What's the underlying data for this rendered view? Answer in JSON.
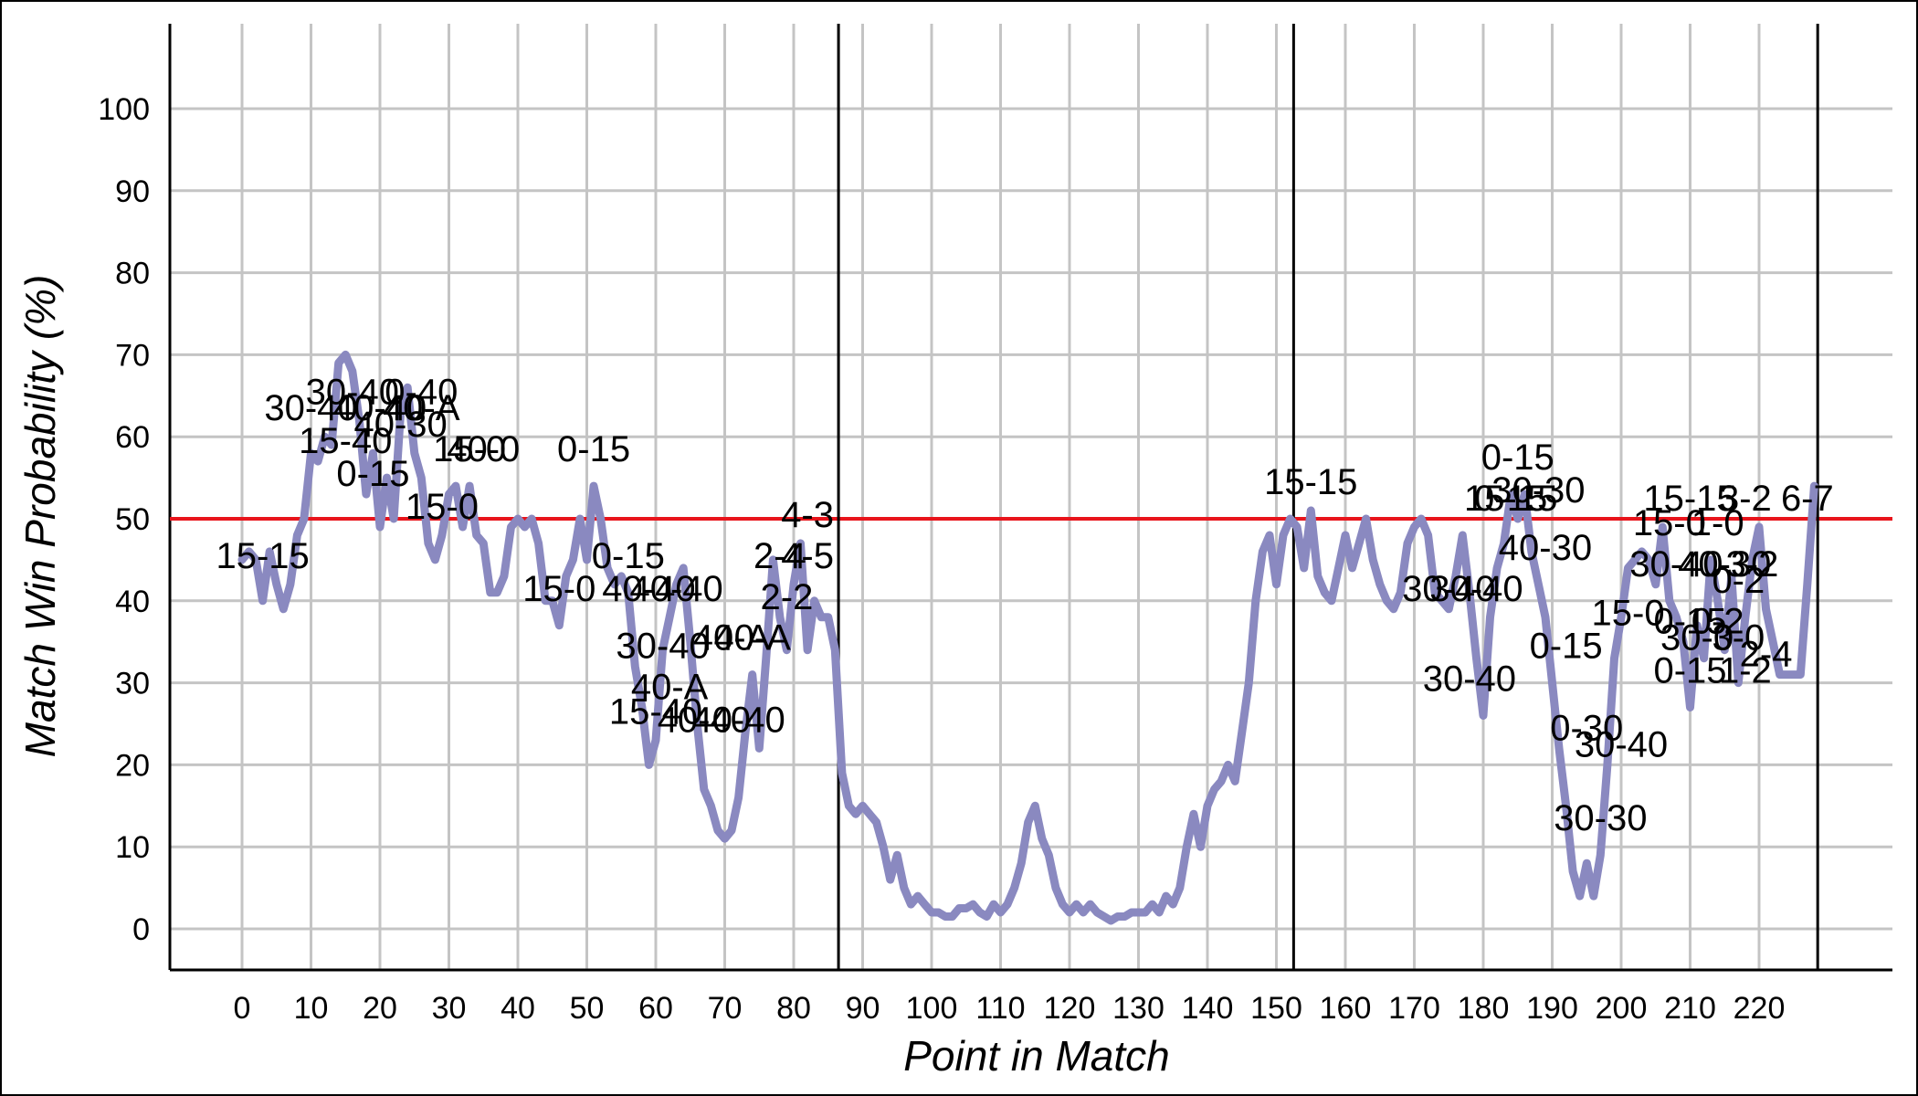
{
  "chart_data": {
    "type": "line",
    "title": "",
    "xlabel": "Point in Match",
    "ylabel": "Match Win Probability (%)",
    "xlim": [
      -10,
      240
    ],
    "ylim": [
      -5,
      110
    ],
    "x_ticks": [
      0,
      10,
      20,
      30,
      40,
      50,
      60,
      70,
      80,
      90,
      100,
      110,
      120,
      130,
      140,
      150,
      160,
      170,
      180,
      190,
      200,
      210,
      220
    ],
    "y_ticks": [
      0,
      10,
      20,
      30,
      40,
      50,
      60,
      70,
      80,
      90,
      100
    ],
    "grid": true,
    "legend": "none",
    "line_color": "#8a89c0",
    "reference_line": {
      "y": 50,
      "color": "#e8141b"
    },
    "set_boundaries": [
      86.5,
      152.5,
      228.5
    ],
    "series": [
      {
        "values": [
          [
            0,
            45
          ],
          [
            1,
            46
          ],
          [
            2,
            45
          ],
          [
            3,
            40
          ],
          [
            4,
            46
          ],
          [
            5,
            42
          ],
          [
            6,
            39
          ],
          [
            7,
            42
          ],
          [
            8,
            48
          ],
          [
            9,
            50
          ],
          [
            10,
            58
          ],
          [
            11,
            57
          ],
          [
            12,
            60
          ],
          [
            13,
            59
          ],
          [
            14,
            69
          ],
          [
            15,
            70
          ],
          [
            16,
            68
          ],
          [
            17,
            62
          ],
          [
            18,
            53
          ],
          [
            19,
            58
          ],
          [
            20,
            49
          ],
          [
            21,
            55
          ],
          [
            22,
            50
          ],
          [
            23,
            63
          ],
          [
            24,
            66
          ],
          [
            25,
            58
          ],
          [
            26,
            55
          ],
          [
            27,
            47
          ],
          [
            28,
            45
          ],
          [
            29,
            48
          ],
          [
            30,
            53
          ],
          [
            31,
            54
          ],
          [
            32,
            49
          ],
          [
            33,
            54
          ],
          [
            34,
            48
          ],
          [
            35,
            47
          ],
          [
            36,
            41
          ],
          [
            37,
            41
          ],
          [
            38,
            43
          ],
          [
            39,
            49
          ],
          [
            40,
            50
          ],
          [
            41,
            49
          ],
          [
            42,
            50
          ],
          [
            43,
            47
          ],
          [
            44,
            40
          ],
          [
            45,
            40
          ],
          [
            46,
            37
          ],
          [
            47,
            43
          ],
          [
            48,
            45
          ],
          [
            49,
            50
          ],
          [
            50,
            45
          ],
          [
            51,
            54
          ],
          [
            52,
            50
          ],
          [
            53,
            44
          ],
          [
            54,
            42
          ],
          [
            55,
            43
          ],
          [
            56,
            41
          ],
          [
            57,
            32
          ],
          [
            58,
            27
          ],
          [
            59,
            20
          ],
          [
            60,
            23
          ],
          [
            61,
            34
          ],
          [
            62,
            38
          ],
          [
            63,
            42
          ],
          [
            64,
            44
          ],
          [
            65,
            35
          ],
          [
            66,
            25
          ],
          [
            67,
            17
          ],
          [
            68,
            15
          ],
          [
            69,
            12
          ],
          [
            70,
            11
          ],
          [
            71,
            12
          ],
          [
            72,
            16
          ],
          [
            73,
            24
          ],
          [
            74,
            31
          ],
          [
            75,
            22
          ],
          [
            76,
            33
          ],
          [
            77,
            45
          ],
          [
            78,
            38
          ],
          [
            79,
            34
          ],
          [
            80,
            42
          ],
          [
            81,
            47
          ],
          [
            82,
            34
          ],
          [
            83,
            40
          ],
          [
            84,
            38
          ],
          [
            85,
            38
          ],
          [
            86,
            34
          ],
          [
            87,
            19
          ],
          [
            88,
            15
          ],
          [
            89,
            14
          ],
          [
            90,
            15
          ],
          [
            91,
            14
          ],
          [
            92,
            13
          ],
          [
            93,
            10
          ],
          [
            94,
            6
          ],
          [
            95,
            9
          ],
          [
            96,
            5
          ],
          [
            97,
            3
          ],
          [
            98,
            4
          ],
          [
            99,
            3
          ],
          [
            100,
            2
          ],
          [
            101,
            2
          ],
          [
            102,
            1.5
          ],
          [
            103,
            1.5
          ],
          [
            104,
            2.5
          ],
          [
            105,
            2.5
          ],
          [
            106,
            3
          ],
          [
            107,
            2
          ],
          [
            108,
            1.5
          ],
          [
            109,
            3
          ],
          [
            110,
            2
          ],
          [
            111,
            3
          ],
          [
            112,
            5
          ],
          [
            113,
            8
          ],
          [
            114,
            13
          ],
          [
            115,
            15
          ],
          [
            116,
            11
          ],
          [
            117,
            9
          ],
          [
            118,
            5
          ],
          [
            119,
            3
          ],
          [
            120,
            2
          ],
          [
            121,
            3
          ],
          [
            122,
            2
          ],
          [
            123,
            3
          ],
          [
            124,
            2
          ],
          [
            125,
            1.5
          ],
          [
            126,
            1
          ],
          [
            127,
            1.5
          ],
          [
            128,
            1.5
          ],
          [
            129,
            2
          ],
          [
            130,
            2
          ],
          [
            131,
            2
          ],
          [
            132,
            3
          ],
          [
            133,
            2
          ],
          [
            134,
            4
          ],
          [
            135,
            3
          ],
          [
            136,
            5
          ],
          [
            137,
            10
          ],
          [
            138,
            14
          ],
          [
            139,
            10
          ],
          [
            140,
            15
          ],
          [
            141,
            17
          ],
          [
            142,
            18
          ],
          [
            143,
            20
          ],
          [
            144,
            18
          ],
          [
            145,
            24
          ],
          [
            146,
            30
          ],
          [
            147,
            40
          ],
          [
            148,
            46
          ],
          [
            149,
            48
          ],
          [
            150,
            42
          ],
          [
            151,
            48
          ],
          [
            152,
            50
          ],
          [
            153,
            49
          ],
          [
            154,
            44
          ],
          [
            155,
            51
          ],
          [
            156,
            43
          ],
          [
            157,
            41
          ],
          [
            158,
            40
          ],
          [
            159,
            44
          ],
          [
            160,
            48
          ],
          [
            161,
            44
          ],
          [
            162,
            47
          ],
          [
            163,
            50
          ],
          [
            164,
            45
          ],
          [
            165,
            42
          ],
          [
            166,
            40
          ],
          [
            167,
            39
          ],
          [
            168,
            41
          ],
          [
            169,
            47
          ],
          [
            170,
            49
          ],
          [
            171,
            50
          ],
          [
            172,
            48
          ],
          [
            173,
            41
          ],
          [
            174,
            40
          ],
          [
            175,
            39
          ],
          [
            176,
            43
          ],
          [
            177,
            48
          ],
          [
            178,
            41
          ],
          [
            179,
            33
          ],
          [
            180,
            26
          ],
          [
            181,
            38
          ],
          [
            182,
            44
          ],
          [
            183,
            47
          ],
          [
            184,
            53
          ],
          [
            185,
            50
          ],
          [
            186,
            53
          ],
          [
            187,
            46
          ],
          [
            188,
            42
          ],
          [
            189,
            38
          ],
          [
            190,
            30
          ],
          [
            191,
            22
          ],
          [
            192,
            15
          ],
          [
            193,
            7
          ],
          [
            194,
            4
          ],
          [
            195,
            8
          ],
          [
            196,
            4
          ],
          [
            197,
            9
          ],
          [
            198,
            20
          ],
          [
            199,
            33
          ],
          [
            200,
            38
          ],
          [
            201,
            44
          ],
          [
            202,
            45
          ],
          [
            203,
            46
          ],
          [
            204,
            45
          ],
          [
            205,
            42
          ],
          [
            206,
            49
          ],
          [
            207,
            40
          ],
          [
            208,
            38
          ],
          [
            209,
            35
          ],
          [
            210,
            27
          ],
          [
            211,
            37
          ],
          [
            212,
            33
          ],
          [
            213,
            45
          ],
          [
            214,
            40
          ],
          [
            215,
            34
          ],
          [
            216,
            43
          ],
          [
            217,
            30
          ],
          [
            218,
            38
          ],
          [
            219,
            45
          ],
          [
            220,
            49
          ],
          [
            221,
            39
          ],
          [
            222,
            35
          ],
          [
            223,
            31
          ],
          [
            224,
            31
          ],
          [
            225,
            31
          ],
          [
            226,
            31
          ],
          [
            227,
            42
          ],
          [
            228,
            54
          ]
        ]
      }
    ],
    "annotations": [
      {
        "text": "15-15",
        "x": 3,
        "y": 44
      },
      {
        "text": "30-40",
        "x": 10,
        "y": 62
      },
      {
        "text": "30-40",
        "x": 16,
        "y": 64
      },
      {
        "text": "15-40",
        "x": 15,
        "y": 58
      },
      {
        "text": "0-15",
        "x": 19,
        "y": 54
      },
      {
        "text": "40-40",
        "x": 20,
        "y": 62
      },
      {
        "text": "40-30",
        "x": 23,
        "y": 60
      },
      {
        "text": "15-0",
        "x": 29,
        "y": 50
      },
      {
        "text": "0-40",
        "x": 26,
        "y": 64
      },
      {
        "text": "40-A",
        "x": 26,
        "y": 62
      },
      {
        "text": "15-0",
        "x": 33,
        "y": 57
      },
      {
        "text": "40-0",
        "x": 35,
        "y": 57
      },
      {
        "text": "0-15",
        "x": 51,
        "y": 57
      },
      {
        "text": "15-0",
        "x": 46,
        "y": 40
      },
      {
        "text": "0-15",
        "x": 56,
        "y": 44
      },
      {
        "text": "40-40",
        "x": 59,
        "y": 40
      },
      {
        "text": "40-40",
        "x": 63,
        "y": 40
      },
      {
        "text": "30-40",
        "x": 61,
        "y": 33
      },
      {
        "text": "40-A",
        "x": 74,
        "y": 34
      },
      {
        "text": "40-A",
        "x": 71,
        "y": 34
      },
      {
        "text": "40-A",
        "x": 62,
        "y": 28
      },
      {
        "text": "15-40",
        "x": 60,
        "y": 25
      },
      {
        "text": "40-40",
        "x": 67,
        "y": 24
      },
      {
        "text": "40-40",
        "x": 72,
        "y": 24
      },
      {
        "text": "4-3",
        "x": 82,
        "y": 49
      },
      {
        "text": "2-4",
        "x": 78,
        "y": 44
      },
      {
        "text": "4-5",
        "x": 82,
        "y": 44
      },
      {
        "text": "2-2",
        "x": 79,
        "y": 39
      },
      {
        "text": "15-15",
        "x": 155,
        "y": 53
      },
      {
        "text": "0-15",
        "x": 185,
        "y": 56
      },
      {
        "text": "30-30",
        "x": 188,
        "y": 52
      },
      {
        "text": "0-15",
        "x": 184,
        "y": 51
      },
      {
        "text": "15-15",
        "x": 184,
        "y": 51
      },
      {
        "text": "40-30",
        "x": 189,
        "y": 45
      },
      {
        "text": "30-40",
        "x": 179,
        "y": 40
      },
      {
        "text": "30-40",
        "x": 175,
        "y": 40
      },
      {
        "text": "0-15",
        "x": 192,
        "y": 33
      },
      {
        "text": "30-40",
        "x": 178,
        "y": 29
      },
      {
        "text": "15-0",
        "x": 201,
        "y": 37
      },
      {
        "text": "0-30",
        "x": 195,
        "y": 23
      },
      {
        "text": "30-40",
        "x": 200,
        "y": 21
      },
      {
        "text": "30-30",
        "x": 197,
        "y": 12
      },
      {
        "text": "15-15",
        "x": 210,
        "y": 51
      },
      {
        "text": "15-0",
        "x": 207,
        "y": 48
      },
      {
        "text": "1-0",
        "x": 214,
        "y": 48
      },
      {
        "text": "3-2",
        "x": 218,
        "y": 51
      },
      {
        "text": "6-7",
        "x": 227,
        "y": 51
      },
      {
        "text": "30-40",
        "x": 208,
        "y": 43
      },
      {
        "text": "40-30",
        "x": 215,
        "y": 43
      },
      {
        "text": "3-2",
        "x": 219,
        "y": 43
      },
      {
        "text": "0-2",
        "x": 217,
        "y": 41
      },
      {
        "text": "0-15",
        "x": 210,
        "y": 36
      },
      {
        "text": "30-0",
        "x": 211,
        "y": 34
      },
      {
        "text": "0-2",
        "x": 214,
        "y": 36
      },
      {
        "text": "3-0",
        "x": 217,
        "y": 34
      },
      {
        "text": "2-4",
        "x": 221,
        "y": 32
      },
      {
        "text": "1-2",
        "x": 218,
        "y": 30
      },
      {
        "text": "0-15",
        "x": 210,
        "y": 30
      }
    ]
  }
}
